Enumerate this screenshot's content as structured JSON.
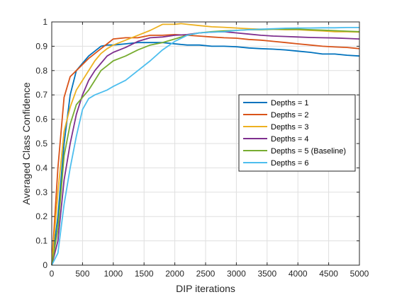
{
  "chart_data": {
    "type": "line",
    "title": "",
    "xlabel": "DIP iterations",
    "ylabel": "Averaged Class Confidence",
    "xlim": [
      0,
      5000
    ],
    "ylim": [
      0,
      1
    ],
    "xticks": [
      0,
      500,
      1000,
      1500,
      2000,
      2500,
      3000,
      3500,
      4000,
      4500,
      5000
    ],
    "yticks": [
      0,
      0.1,
      0.2,
      0.3,
      0.4,
      0.5,
      0.6,
      0.7,
      0.8,
      0.9,
      1
    ],
    "ytick_labels": [
      "0",
      "0.1",
      "0.2",
      "0.3",
      "0.4",
      "0.5",
      "0.6",
      "0.7",
      "0.8",
      "0.9",
      "1"
    ],
    "grid": true,
    "legend_position": "right",
    "series": [
      {
        "name": "Depths = 1",
        "color": "#0072BD",
        "x": [
          0,
          100,
          200,
          300,
          400,
          500,
          600,
          700,
          800,
          900,
          1000,
          1200,
          1400,
          1600,
          1800,
          2000,
          2200,
          2400,
          2600,
          2800,
          3000,
          3200,
          3400,
          3600,
          3800,
          4000,
          4200,
          4400,
          4600,
          4800,
          5000
        ],
        "y": [
          0,
          0.2,
          0.5,
          0.7,
          0.8,
          0.83,
          0.86,
          0.88,
          0.9,
          0.905,
          0.905,
          0.91,
          0.915,
          0.915,
          0.915,
          0.91,
          0.905,
          0.905,
          0.9,
          0.9,
          0.898,
          0.893,
          0.89,
          0.888,
          0.885,
          0.88,
          0.875,
          0.868,
          0.868,
          0.863,
          0.86
        ]
      },
      {
        "name": "Depths = 2",
        "color": "#D95319",
        "x": [
          0,
          100,
          200,
          300,
          400,
          500,
          600,
          700,
          800,
          900,
          1000,
          1200,
          1400,
          1600,
          1800,
          2000,
          2200,
          2400,
          2600,
          2800,
          3000,
          3200,
          3400,
          3600,
          3800,
          4000,
          4200,
          4400,
          4600,
          4800,
          5000
        ],
        "y": [
          0,
          0.4,
          0.69,
          0.775,
          0.8,
          0.825,
          0.85,
          0.87,
          0.89,
          0.91,
          0.93,
          0.935,
          0.935,
          0.945,
          0.945,
          0.948,
          0.945,
          0.942,
          0.938,
          0.935,
          0.933,
          0.928,
          0.925,
          0.92,
          0.915,
          0.91,
          0.905,
          0.9,
          0.897,
          0.895,
          0.89
        ]
      },
      {
        "name": "Depths = 3",
        "color": "#EDB120",
        "x": [
          0,
          100,
          200,
          300,
          400,
          500,
          600,
          700,
          800,
          900,
          1000,
          1200,
          1400,
          1600,
          1800,
          1900,
          2000,
          2100,
          2200,
          2400,
          2600,
          2800,
          3000,
          3200,
          3400,
          3600,
          3800,
          4000,
          4200,
          4400,
          4600,
          4800,
          5000
        ],
        "y": [
          0,
          0.3,
          0.55,
          0.65,
          0.72,
          0.76,
          0.8,
          0.84,
          0.87,
          0.89,
          0.905,
          0.925,
          0.945,
          0.965,
          0.99,
          0.99,
          0.99,
          0.993,
          0.99,
          0.985,
          0.98,
          0.978,
          0.975,
          0.972,
          0.97,
          0.97,
          0.968,
          0.968,
          0.965,
          0.963,
          0.96,
          0.96,
          0.958
        ]
      },
      {
        "name": "Depths = 4",
        "color": "#7E2F8E",
        "x": [
          0,
          100,
          200,
          300,
          400,
          500,
          600,
          700,
          800,
          900,
          1000,
          1200,
          1400,
          1600,
          1800,
          2000,
          2200,
          2400,
          2600,
          2800,
          3000,
          3200,
          3400,
          3600,
          3800,
          4000,
          4200,
          4400,
          4600,
          4800,
          5000
        ],
        "y": [
          0,
          0.1,
          0.35,
          0.5,
          0.62,
          0.7,
          0.76,
          0.8,
          0.83,
          0.86,
          0.875,
          0.895,
          0.92,
          0.935,
          0.938,
          0.945,
          0.948,
          0.955,
          0.958,
          0.96,
          0.955,
          0.95,
          0.945,
          0.942,
          0.94,
          0.938,
          0.936,
          0.935,
          0.934,
          0.932,
          0.93
        ]
      },
      {
        "name": "Depths = 5 (Baseline)",
        "color": "#77AC30",
        "x": [
          0,
          100,
          200,
          300,
          400,
          500,
          600,
          700,
          800,
          900,
          1000,
          1200,
          1400,
          1600,
          1800,
          2000,
          2200,
          2400,
          2600,
          2800,
          3000,
          3200,
          3400,
          3600,
          3800,
          4000,
          4200,
          4400,
          4600,
          4800,
          5000
        ],
        "y": [
          0,
          0.15,
          0.45,
          0.58,
          0.66,
          0.69,
          0.72,
          0.76,
          0.8,
          0.82,
          0.84,
          0.86,
          0.885,
          0.905,
          0.915,
          0.93,
          0.945,
          0.955,
          0.96,
          0.963,
          0.965,
          0.968,
          0.968,
          0.97,
          0.97,
          0.97,
          0.968,
          0.966,
          0.964,
          0.962,
          0.96
        ]
      },
      {
        "name": "Depths = 6",
        "color": "#4DBEEE",
        "x": [
          0,
          100,
          200,
          300,
          400,
          500,
          600,
          700,
          800,
          900,
          1000,
          1200,
          1400,
          1600,
          1800,
          2000,
          2200,
          2400,
          2600,
          2800,
          3000,
          3200,
          3400,
          3600,
          3800,
          4000,
          4200,
          4400,
          4600,
          4800,
          5000
        ],
        "y": [
          0,
          0.05,
          0.25,
          0.4,
          0.53,
          0.64,
          0.685,
          0.7,
          0.71,
          0.72,
          0.735,
          0.76,
          0.8,
          0.84,
          0.885,
          0.92,
          0.945,
          0.955,
          0.958,
          0.96,
          0.965,
          0.968,
          0.97,
          0.972,
          0.974,
          0.975,
          0.975,
          0.976,
          0.976,
          0.977,
          0.977
        ]
      }
    ]
  }
}
